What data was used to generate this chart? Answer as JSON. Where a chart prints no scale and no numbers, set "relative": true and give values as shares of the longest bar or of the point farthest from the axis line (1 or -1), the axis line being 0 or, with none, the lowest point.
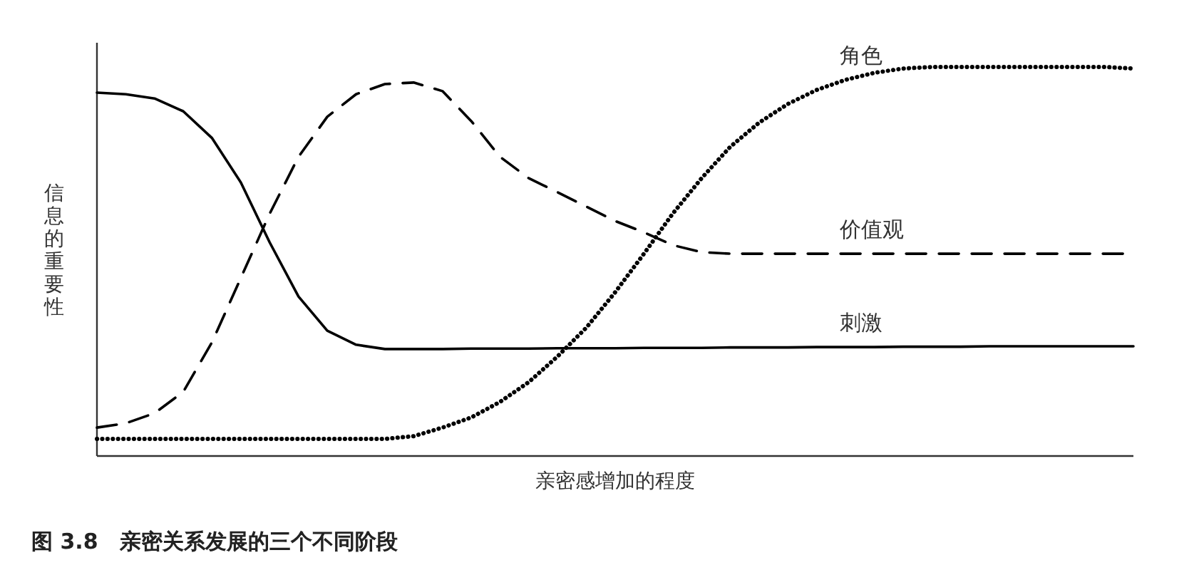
{
  "chart_data": {
    "type": "line",
    "relative": true,
    "ylabel": "信息的重要性",
    "xlabel": "亲密感增加的程度",
    "annotations": [
      "图 3.8　亲密关系发展的三个不同阶段"
    ],
    "categories": [
      null,
      null,
      null,
      null,
      null,
      null,
      null,
      null,
      null,
      null,
      null,
      null,
      null,
      null,
      null,
      null,
      null,
      null,
      null,
      null,
      null,
      null,
      null,
      null,
      null,
      null,
      null,
      null,
      null,
      null,
      null,
      null,
      null,
      null,
      null,
      null,
      null
    ],
    "series": [
      {
        "name": "刺激",
        "color": "#000000",
        "line_style": "solid",
        "values": [
          0.934,
          0.93,
          0.919,
          0.886,
          0.817,
          0.703,
          0.549,
          0.41,
          0.322,
          0.286,
          0.275,
          0.275,
          0.275,
          0.276,
          0.276,
          0.276,
          0.277,
          0.277,
          0.277,
          0.278,
          0.278,
          0.278,
          0.279,
          0.279,
          0.279,
          0.28,
          0.28,
          0.28,
          0.281,
          0.281,
          0.281,
          0.282,
          0.282,
          0.282,
          0.282,
          0.282,
          0.282
        ]
      },
      {
        "name": "价值观",
        "color": "#000000",
        "line_style": "dashed",
        "values": [
          0.073,
          0.084,
          0.11,
          0.165,
          0.293,
          0.458,
          0.623,
          0.769,
          0.872,
          0.93,
          0.956,
          0.96,
          0.938,
          0.861,
          0.769,
          0.714,
          0.678,
          0.641,
          0.604,
          0.575,
          0.542,
          0.524,
          0.52,
          0.52,
          0.52,
          0.52,
          0.52,
          0.52,
          0.52,
          0.52,
          0.52,
          0.52,
          0.52,
          0.52,
          0.52,
          0.52,
          0.52
        ]
      },
      {
        "name": "角色",
        "color": "#000000",
        "line_style": "dotted",
        "values": [
          0.044,
          0.044,
          0.044,
          0.044,
          0.044,
          0.044,
          0.044,
          0.044,
          0.044,
          0.044,
          0.044,
          0.051,
          0.073,
          0.099,
          0.139,
          0.19,
          0.256,
          0.33,
          0.421,
          0.52,
          0.623,
          0.714,
          0.795,
          0.857,
          0.905,
          0.941,
          0.967,
          0.985,
          0.996,
          1.0,
          1.0,
          1.0,
          1.0,
          1.0,
          1.0,
          1.0,
          0.996
        ]
      }
    ]
  }
}
